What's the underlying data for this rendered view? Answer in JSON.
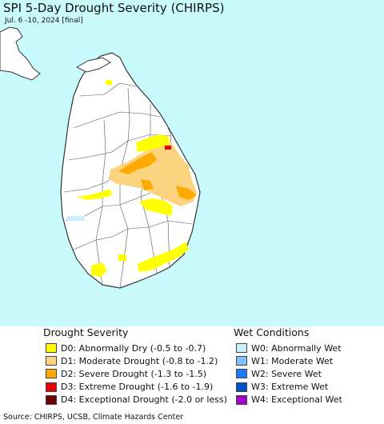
{
  "title": "SPI 5-Day Drought Severity (CHIRPS)",
  "subtitle": "Jul. 6 -10, 2024 [final]",
  "colors": {
    "ocean": "#c9fbfd",
    "land": "#ffffff",
    "border": "#333333",
    "d0": "#ffff00",
    "d1": "#fcd37f",
    "d2": "#ffaa00",
    "d3": "#e60000",
    "d4": "#730000",
    "w0": "#c9f0ff",
    "w1": "#80c0ff",
    "w2": "#1e78ff",
    "w3": "#0050c8",
    "w4": "#a000c8"
  },
  "legend": {
    "drought": {
      "title": "Drought Severity",
      "items": [
        {
          "key": "d0",
          "label": "D0: Abnormally Dry (-0.5 to -0.7)"
        },
        {
          "key": "d1",
          "label": "D1: Moderate Drought (-0.8 to -1.2)"
        },
        {
          "key": "d2",
          "label": "D2: Severe Drought (-1.3 to -1.5)"
        },
        {
          "key": "d3",
          "label": "D3: Extreme Drought (-1.6 to -1.9)"
        },
        {
          "key": "d4",
          "label": "D4: Exceptional Drought (-2.0 or less)"
        }
      ]
    },
    "wet": {
      "title": "Wet Conditions",
      "items": [
        {
          "key": "w0",
          "label": "W0: Abnormally Wet"
        },
        {
          "key": "w1",
          "label": "W1: Moderate Wet"
        },
        {
          "key": "w2",
          "label": "W2: Severe Wet"
        },
        {
          "key": "w3",
          "label": "W3: Extreme Wet"
        },
        {
          "key": "w4",
          "label": "W4: Exceptional Wet"
        }
      ]
    }
  },
  "source": "Source: CHIRPS, UCSB, Climate Hazards Center"
}
